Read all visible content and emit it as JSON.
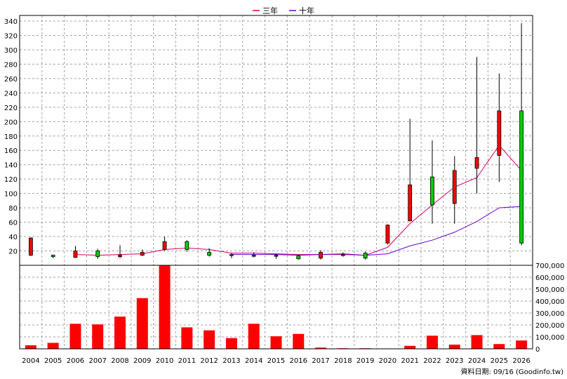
{
  "chart_data": {
    "type": "candlestick+line+bar",
    "legend": [
      {
        "name": "三年",
        "color": "#cc0066"
      },
      {
        "name": "十年",
        "color": "#6600cc"
      }
    ],
    "years": [
      "2004",
      "2005",
      "2006",
      "2007",
      "2008",
      "2009",
      "2010",
      "2011",
      "2012",
      "2013",
      "2014",
      "2015",
      "2016",
      "2017",
      "2018",
      "2019",
      "2020",
      "2021",
      "2022",
      "2023",
      "2024",
      "2025",
      "2026"
    ],
    "price_axis": {
      "min": 0,
      "max": 340,
      "ticks": [
        20,
        40,
        60,
        80,
        100,
        120,
        140,
        160,
        180,
        200,
        220,
        240,
        260,
        280,
        300,
        320,
        340
      ]
    },
    "volume_axis": {
      "min": 0,
      "max": 700000,
      "ticks": [
        "0",
        "100,000",
        "200,000",
        "300,000",
        "400,000",
        "500,000",
        "600,000",
        "700,000"
      ]
    },
    "candles": [
      {
        "year": "2004",
        "open": 14,
        "close": 38,
        "high": 39,
        "low": 13
      },
      {
        "year": "2005",
        "open": 14,
        "close": 12,
        "high": 15,
        "low": 10
      },
      {
        "year": "2006",
        "open": 11,
        "close": 20,
        "high": 27,
        "low": 10
      },
      {
        "year": "2007",
        "open": 20,
        "close": 12,
        "high": 23,
        "low": 9
      },
      {
        "year": "2008",
        "open": 12,
        "close": 14,
        "high": 28,
        "low": 10
      },
      {
        "year": "2009",
        "open": 14,
        "close": 18,
        "high": 22,
        "low": 13
      },
      {
        "year": "2010",
        "open": 22,
        "close": 33,
        "high": 40,
        "low": 20
      },
      {
        "year": "2011",
        "open": 33,
        "close": 22,
        "high": 35,
        "low": 19
      },
      {
        "year": "2012",
        "open": 18,
        "close": 14,
        "high": 24,
        "low": 12
      },
      {
        "year": "2013",
        "open": 14,
        "close": 15,
        "high": 17,
        "low": 10
      },
      {
        "year": "2014",
        "open": 14,
        "close": 14,
        "high": 18,
        "low": 11
      },
      {
        "year": "2015",
        "open": 14,
        "close": 14,
        "high": 16,
        "low": 9
      },
      {
        "year": "2016",
        "open": 13,
        "close": 9,
        "high": 15,
        "low": 8
      },
      {
        "year": "2017",
        "open": 10,
        "close": 18,
        "high": 21,
        "low": 8
      },
      {
        "year": "2018",
        "open": 15,
        "close": 15,
        "high": 18,
        "low": 12
      },
      {
        "year": "2019",
        "open": 17,
        "close": 10,
        "high": 19,
        "low": 8
      },
      {
        "year": "2020",
        "open": 31,
        "close": 56,
        "high": 57,
        "low": 29
      },
      {
        "year": "2021",
        "open": 62,
        "close": 112,
        "high": 204,
        "low": 61
      },
      {
        "year": "2022",
        "open": 123,
        "close": 84,
        "high": 174,
        "low": 58
      },
      {
        "year": "2023",
        "open": 86,
        "close": 132,
        "high": 152,
        "low": 58
      },
      {
        "year": "2024",
        "open": 135,
        "close": 150,
        "high": 290,
        "low": 100
      },
      {
        "year": "2025",
        "open": 153,
        "close": 215,
        "high": 267,
        "low": 116
      },
      {
        "year": "2026",
        "open": 215,
        "close": 31,
        "high": 337,
        "low": 28
      }
    ],
    "series": [
      {
        "name": "三年",
        "values": [
          null,
          null,
          15,
          14,
          15,
          16,
          22,
          24,
          22,
          17,
          17,
          16,
          15,
          15,
          15,
          14,
          25,
          58,
          84,
          109,
          122,
          167,
          132
        ]
      },
      {
        "name": "十年",
        "values": [
          null,
          null,
          null,
          null,
          null,
          null,
          null,
          null,
          null,
          15,
          15,
          15,
          14,
          15,
          16,
          14,
          16,
          27,
          35,
          46,
          61,
          80,
          82
        ]
      }
    ],
    "volume": [
      30000,
      50000,
      210000,
      205000,
      270000,
      425000,
      700000,
      180000,
      155000,
      90000,
      210000,
      105000,
      125000,
      10000,
      5000,
      5000,
      3000,
      25000,
      110000,
      35000,
      115000,
      40000,
      70000
    ],
    "footer": "資料日期: 09/16  (Goodinfo.tw)"
  }
}
